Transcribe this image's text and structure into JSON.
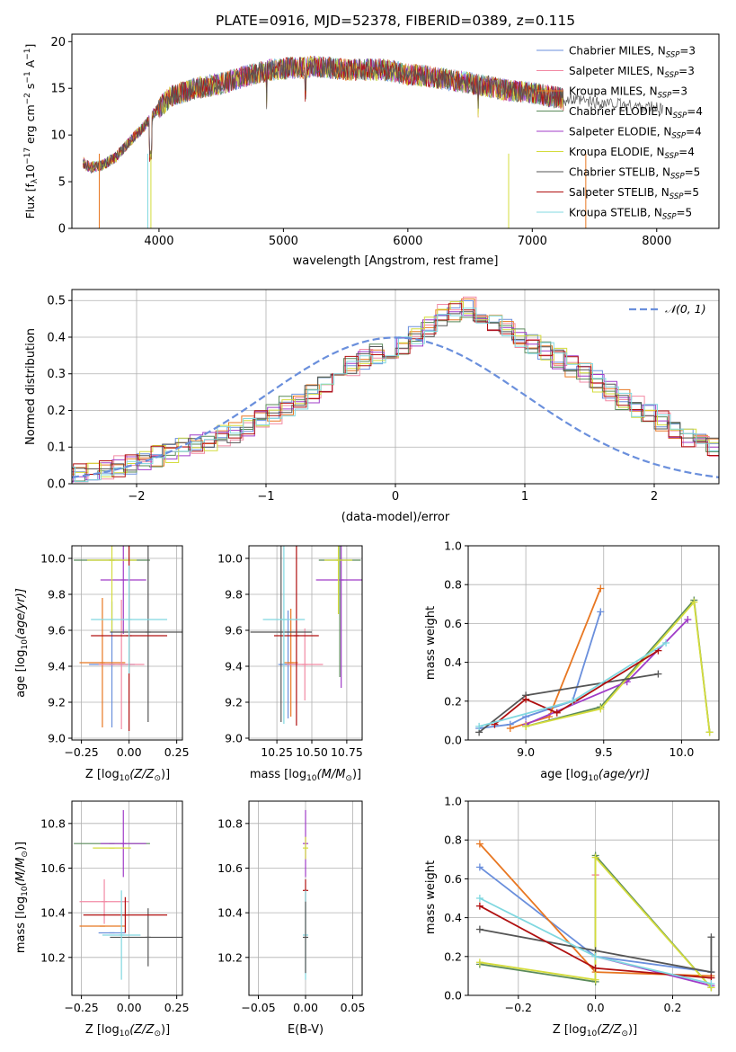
{
  "title": "PLATE=0916, MJD=52378, FIBERID=0389, z=0.115",
  "colors": {
    "c1": "#6a8fdc",
    "c2": "#e87722",
    "c3": "#f28aa4",
    "c4": "#5a8a5a",
    "c5": "#a03cc8",
    "c6": "#d4dc3c",
    "c7": "#555555",
    "c8": "#b01010",
    "c9": "#80d8e0",
    "grid": "#b0b0b0"
  },
  "chart_data": [
    {
      "id": "spectrum",
      "type": "line",
      "xlabel": "wavelength [Angstrom, rest frame]",
      "ylabel": "Flux [f$_\\lambda$10$^{-17}$ erg cm$^{-2}$ s$^{-1}$ A$^{-1}$]",
      "ylabel_parts": {
        "a": "Flux [f",
        "b": "λ",
        "c": "10",
        "d": "−17",
        "e": " erg cm",
        "f": "−2",
        "g": " s",
        "h": "−1",
        "i": " A",
        "j": "−1",
        "k": "]"
      },
      "xlim": [
        3300,
        8500
      ],
      "ylim": [
        0,
        20.8
      ],
      "xticks": [
        4000,
        5000,
        6000,
        7000,
        8000
      ],
      "yticks": [
        0,
        5,
        10,
        15,
        20
      ],
      "grid": false,
      "legend_position": "top-right",
      "spectrum_anchors": [
        [
          3390,
          7
        ],
        [
          3450,
          6.5
        ],
        [
          3550,
          6.8
        ],
        [
          3650,
          7.6
        ],
        [
          3800,
          9.8
        ],
        [
          3900,
          11.2
        ],
        [
          3970,
          12.5
        ],
        [
          4100,
          14.2
        ],
        [
          4300,
          15.0
        ],
        [
          4500,
          15.5
        ],
        [
          4700,
          16.3
        ],
        [
          4900,
          17.0
        ],
        [
          5100,
          17.2
        ],
        [
          5300,
          17.3
        ],
        [
          5500,
          17.0
        ],
        [
          5800,
          17.0
        ],
        [
          6000,
          16.5
        ],
        [
          6200,
          16.2
        ],
        [
          6400,
          15.8
        ],
        [
          6600,
          15.3
        ],
        [
          6800,
          14.8
        ],
        [
          7000,
          14.5
        ],
        [
          7200,
          14.0
        ],
        [
          7250,
          13.8
        ]
      ],
      "series": [
        {
          "name_a": "Chabrier MILES, N",
          "name_sub": "SSP",
          "name_b": "=3",
          "color_key": "c1"
        },
        {
          "name_a": "Salpeter MILES, N",
          "name_sub": "SSP",
          "name_b": "=3",
          "color_key": "c3"
        },
        {
          "name_a": "Kroupa MILES, N",
          "name_sub": "SSP",
          "name_b": "=3",
          "color_key": "c2"
        },
        {
          "name_a": "Chabrier ELODIE, N",
          "name_sub": "SSP",
          "name_b": "=4",
          "color_key": "c4"
        },
        {
          "name_a": "Salpeter ELODIE, N",
          "name_sub": "SSP",
          "name_b": "=4",
          "color_key": "c5"
        },
        {
          "name_a": "Kroupa ELODIE, N",
          "name_sub": "SSP",
          "name_b": "=4",
          "color_key": "c6"
        },
        {
          "name_a": "Chabrier STELIB, N",
          "name_sub": "SSP",
          "name_b": "=5",
          "color_key": "c7"
        },
        {
          "name_a": "Salpeter STELIB, N",
          "name_sub": "SSP",
          "name_b": "=5",
          "color_key": "c8"
        },
        {
          "name_a": "Kroupa STELIB, N",
          "name_sub": "SSP",
          "name_b": "=5",
          "color_key": "c9"
        }
      ]
    },
    {
      "id": "residuals",
      "type": "line",
      "xlabel": "(data-model)/error",
      "ylabel": "Normed distribution",
      "xlim": [
        -2.5,
        2.5
      ],
      "ylim": [
        0,
        0.53
      ],
      "xticks": [
        -2,
        -1,
        0,
        1,
        2
      ],
      "xtick_labels": [
        "−2",
        "−1",
        "0",
        "1",
        "2"
      ],
      "yticks": [
        0.0,
        0.1,
        0.2,
        0.3,
        0.4,
        0.5
      ],
      "ytick_labels": [
        "0.0",
        "0.1",
        "0.2",
        "0.3",
        "0.4",
        "0.5"
      ],
      "grid": true,
      "legend_position": "top-right",
      "legend_label": "𝒩(0, 1)",
      "bin_width": 0.1,
      "histogram_base": [
        0.018,
        0.025,
        0.028,
        0.035,
        0.048,
        0.055,
        0.065,
        0.075,
        0.085,
        0.095,
        0.105,
        0.12,
        0.13,
        0.14,
        0.155,
        0.17,
        0.19,
        0.21,
        0.23,
        0.25,
        0.27,
        0.3,
        0.32,
        0.34,
        0.355,
        0.37,
        0.38,
        0.4,
        0.43,
        0.46,
        0.47,
        0.48,
        0.46,
        0.44,
        0.42,
        0.4,
        0.38,
        0.36,
        0.34,
        0.32,
        0.3,
        0.28,
        0.25,
        0.23,
        0.21,
        0.19,
        0.17,
        0.15,
        0.13,
        0.115,
        0.1,
        0.085,
        0.075,
        0.065,
        0.055,
        0.048,
        0.042,
        0.036,
        0.03,
        0.026,
        0.022,
        0.018,
        0.015,
        0.013,
        0.012
      ],
      "histogram_start": -2.6
    },
    {
      "id": "age-vs-Z",
      "type": "scatter",
      "xlabel_a": "Z [log",
      "xlabel_sub": "10",
      "xlabel_b": "(Z/Z",
      "xlabel_sun": "⊙",
      "xlabel_c": ")]",
      "ylabel_a": "age  [log",
      "ylabel_sub": "10",
      "ylabel_b": "(age/yr)]",
      "xlim": [
        -0.3,
        0.28
      ],
      "ylim": [
        8.99,
        10.07
      ],
      "xticks": [
        -0.25,
        0.0,
        0.25
      ],
      "xtick_labels": [
        "−0.25",
        "0.00",
        "0.25"
      ],
      "yticks": [
        9.0,
        9.2,
        9.4,
        9.6,
        9.8,
        10.0
      ],
      "ytick_labels": [
        "9.0",
        "9.2",
        "9.4",
        "9.6",
        "9.8",
        "10.0"
      ],
      "grid": true,
      "points": [
        {
          "c": "c1",
          "x": -0.09,
          "xerr": 0.12,
          "y": 9.41,
          "yerr": 0.35
        },
        {
          "c": "c2",
          "x": -0.14,
          "xerr": 0.12,
          "y": 9.42,
          "yerr": 0.36
        },
        {
          "c": "c3",
          "x": -0.04,
          "xerr": 0.12,
          "y": 9.41,
          "yerr": 0.36
        },
        {
          "c": "c4",
          "x": -0.09,
          "xerr": 0.2,
          "y": 9.99,
          "yerr": 0.0
        },
        {
          "c": "c5",
          "x": -0.03,
          "xerr": 0.12,
          "y": 9.88,
          "yerr": 0.3
        },
        {
          "c": "c6",
          "x": -0.09,
          "xerr": 0.13,
          "y": 9.99,
          "yerr": 0.4
        },
        {
          "c": "c7",
          "x": 0.1,
          "xerr": 0.2,
          "y": 9.59,
          "yerr": 0.5
        },
        {
          "c": "c8",
          "x": 0.0,
          "xerr": 0.2,
          "y": 9.57,
          "yerr": 0.53
        },
        {
          "c": "c9",
          "x": 0.0,
          "xerr": 0.2,
          "y": 9.66,
          "yerr": 0.3
        }
      ]
    },
    {
      "id": "age-vs-mass",
      "type": "scatter",
      "xlabel_a": "mass [log",
      "xlabel_sub": "10",
      "xlabel_b": "(M/M",
      "xlabel_sun": "⊙",
      "xlabel_c": ")]",
      "xlim": [
        10.05,
        10.86
      ],
      "ylim": [
        8.99,
        10.07
      ],
      "xticks": [
        10.25,
        10.5,
        10.75
      ],
      "xtick_labels": [
        "10.25",
        "10.50",
        "10.75"
      ],
      "yticks": [
        9.0,
        9.2,
        9.4,
        9.6,
        9.8,
        10.0
      ],
      "ytick_labels": [
        "9.0",
        "9.2",
        "9.4",
        "9.6",
        "9.8",
        "10.0"
      ],
      "grid": true,
      "points": [
        {
          "c": "c1",
          "x": 10.33,
          "xerr": 0.07,
          "y": 9.41,
          "yerr": 0.3
        },
        {
          "c": "c2",
          "x": 10.35,
          "xerr": 0.05,
          "y": 9.42,
          "yerr": 0.3
        },
        {
          "c": "c3",
          "x": 10.45,
          "xerr": 0.13,
          "y": 9.41,
          "yerr": 0.2
        },
        {
          "c": "c4",
          "x": 10.7,
          "xerr": 0.15,
          "y": 9.99,
          "yerr": 0.65
        },
        {
          "c": "c5",
          "x": 10.71,
          "xerr": 0.18,
          "y": 9.88,
          "yerr": 0.6
        },
        {
          "c": "c6",
          "x": 10.69,
          "xerr": 0.1,
          "y": 9.99,
          "yerr": 0.3
        },
        {
          "c": "c7",
          "x": 10.28,
          "xerr": 0.22,
          "y": 9.59,
          "yerr": 0.5
        },
        {
          "c": "c8",
          "x": 10.39,
          "xerr": 0.16,
          "y": 9.57,
          "yerr": 0.5
        },
        {
          "c": "c9",
          "x": 10.3,
          "xerr": 0.15,
          "y": 9.66,
          "yerr": 0.58
        }
      ]
    },
    {
      "id": "weight-vs-age",
      "type": "line",
      "xlabel_a": "age  [log",
      "xlabel_sub": "10",
      "xlabel_b": "(age/yr)]",
      "ylabel": "mass weight",
      "xlim": [
        8.63,
        10.24
      ],
      "ylim": [
        0.0,
        1.0
      ],
      "xticks": [
        9.0,
        9.5,
        10.0
      ],
      "xtick_labels": [
        "9.0",
        "9.5",
        "10.0"
      ],
      "yticks": [
        0.0,
        0.2,
        0.4,
        0.6,
        0.8,
        1.0
      ],
      "ytick_labels": [
        "0.0",
        "0.2",
        "0.4",
        "0.6",
        "0.8",
        "1.0"
      ],
      "grid": true,
      "series": [
        {
          "c": "c1",
          "x": [
            8.7,
            8.9,
            9.0,
            9.3,
            9.48
          ],
          "y": [
            0.06,
            0.08,
            0.12,
            0.2,
            0.66
          ]
        },
        {
          "c": "c2",
          "x": [
            8.9,
            9.15,
            9.48
          ],
          "y": [
            0.06,
            0.12,
            0.78
          ]
        },
        {
          "c": "c4",
          "x": [
            9.0,
            9.48,
            10.08,
            10.18
          ],
          "y": [
            0.07,
            0.17,
            0.72,
            0.04
          ]
        },
        {
          "c": "c5",
          "x": [
            9.0,
            9.65,
            10.04
          ],
          "y": [
            0.08,
            0.3,
            0.62
          ]
        },
        {
          "c": "c6",
          "x": [
            9.0,
            9.48,
            10.08,
            10.18
          ],
          "y": [
            0.07,
            0.16,
            0.71,
            0.04
          ]
        },
        {
          "c": "c7",
          "x": [
            8.7,
            9.0,
            9.85
          ],
          "y": [
            0.04,
            0.23,
            0.34
          ]
        },
        {
          "c": "c8",
          "x": [
            8.8,
            9.0,
            9.2,
            9.85
          ],
          "y": [
            0.08,
            0.21,
            0.14,
            0.46
          ]
        },
        {
          "c": "c9",
          "x": [
            8.7,
            9.3,
            9.9
          ],
          "y": [
            0.07,
            0.2,
            0.5
          ]
        }
      ]
    },
    {
      "id": "mass-vs-Z",
      "type": "scatter",
      "xlabel_a": "Z [log",
      "xlabel_sub": "10",
      "xlabel_b": "(Z/Z",
      "xlabel_sun": "⊙",
      "xlabel_c": ")]",
      "ylabel_a": "mass [log",
      "ylabel_sub": "10",
      "ylabel_b": "(M/M",
      "ylabel_sun": "⊙",
      "ylabel_c": ")]",
      "xlim": [
        -0.3,
        0.28
      ],
      "ylim": [
        10.03,
        10.9
      ],
      "xticks": [
        -0.25,
        0.0,
        0.25
      ],
      "xtick_labels": [
        "−0.25",
        "0.00",
        "0.25"
      ],
      "yticks": [
        10.2,
        10.4,
        10.6,
        10.8
      ],
      "ytick_labels": [
        "10.2",
        "10.4",
        "10.6",
        "10.8"
      ],
      "grid": true,
      "points": [
        {
          "c": "c1",
          "x": -0.09,
          "xerr": 0.07,
          "y": 10.31,
          "yerr": 0.0
        },
        {
          "c": "c2",
          "x": -0.14,
          "xerr": 0.12,
          "y": 10.34,
          "yerr": 0.0
        },
        {
          "c": "c3",
          "x": -0.13,
          "xerr": 0.13,
          "y": 10.45,
          "yerr": 0.1
        },
        {
          "c": "c4",
          "x": -0.09,
          "xerr": 0.2,
          "y": 10.71,
          "yerr": 0.0
        },
        {
          "c": "c5",
          "x": -0.03,
          "xerr": 0.12,
          "y": 10.71,
          "yerr": 0.15
        },
        {
          "c": "c6",
          "x": -0.09,
          "xerr": 0.1,
          "y": 10.69,
          "yerr": 0.0
        },
        {
          "c": "c7",
          "x": 0.1,
          "xerr": 0.2,
          "y": 10.29,
          "yerr": 0.13
        },
        {
          "c": "c8",
          "x": -0.02,
          "xerr": 0.22,
          "y": 10.39,
          "yerr": 0.08
        },
        {
          "c": "c9",
          "x": -0.04,
          "xerr": 0.1,
          "y": 10.3,
          "yerr": 0.2
        }
      ]
    },
    {
      "id": "mass-vs-EBV",
      "type": "scatter",
      "xlabel": "E(B-V)",
      "xlim": [
        -0.06,
        0.06
      ],
      "ylim": [
        10.03,
        10.9
      ],
      "xticks": [
        -0.05,
        0.0,
        0.05
      ],
      "xtick_labels": [
        "−0.05",
        "0.00",
        "0.05"
      ],
      "yticks": [
        10.2,
        10.4,
        10.6,
        10.8
      ],
      "ytick_labels": [
        "10.2",
        "10.4",
        "10.6",
        "10.8"
      ],
      "grid": true,
      "points": [
        {
          "c": "c5",
          "x": 0.0,
          "xerr": 0.0,
          "y": 10.71,
          "yerr": 0.15
        },
        {
          "c": "c6",
          "x": 0.0,
          "xerr": 0.0,
          "y": 10.69,
          "yerr": 0.05
        },
        {
          "c": "c8",
          "x": 0.0,
          "xerr": 0.0,
          "y": 10.5,
          "yerr": 0.05
        },
        {
          "c": "c9",
          "x": 0.0,
          "xerr": 0.0,
          "y": 10.3,
          "yerr": 0.2
        },
        {
          "c": "c7",
          "x": 0.0,
          "xerr": 0.0,
          "y": 10.29,
          "yerr": 0.16
        }
      ]
    },
    {
      "id": "weight-vs-Z",
      "type": "line",
      "xlabel_a": "Z [log",
      "xlabel_sub": "10",
      "xlabel_b": "(Z/Z",
      "xlabel_sun": "⊙",
      "xlabel_c": ")]",
      "ylabel": "mass weight",
      "xlim": [
        -0.33,
        0.32
      ],
      "ylim": [
        0.0,
        1.0
      ],
      "xticks": [
        -0.2,
        0.0,
        0.2
      ],
      "xtick_labels": [
        "−0.2",
        "0.0",
        "0.2"
      ],
      "yticks": [
        0.0,
        0.2,
        0.4,
        0.6,
        0.8,
        1.0
      ],
      "ytick_labels": [
        "0.0",
        "0.2",
        "0.4",
        "0.6",
        "0.8",
        "1.0"
      ],
      "grid": true,
      "series": [
        {
          "c": "c1",
          "x": [
            -0.3,
            0.0,
            0.3
          ],
          "y": [
            0.66,
            0.2,
            0.12
          ]
        },
        {
          "c": "c2",
          "x": [
            -0.3,
            0.0,
            0.3
          ],
          "y": [
            0.78,
            0.12,
            0.1
          ]
        },
        {
          "c": "c3",
          "x": [
            0.0,
            0.0
          ],
          "y": [
            0.62,
            0.62
          ]
        },
        {
          "c": "c4",
          "x": [
            -0.3,
            0.0,
            0.0,
            0.3
          ],
          "y": [
            0.16,
            0.07,
            0.72,
            0.04
          ]
        },
        {
          "c": "c5",
          "x": [
            0.0,
            0.3
          ],
          "y": [
            0.2,
            0.05
          ]
        },
        {
          "c": "c6",
          "x": [
            -0.3,
            0.0,
            0.0,
            0.3
          ],
          "y": [
            0.17,
            0.08,
            0.71,
            0.04
          ]
        },
        {
          "c": "c7",
          "x": [
            -0.3,
            0.0,
            0.3,
            0.3
          ],
          "y": [
            0.34,
            0.23,
            0.12,
            0.3
          ]
        },
        {
          "c": "c8",
          "x": [
            -0.3,
            0.0,
            0.3
          ],
          "y": [
            0.46,
            0.14,
            0.09
          ]
        },
        {
          "c": "c9",
          "x": [
            -0.3,
            0.0,
            0.3
          ],
          "y": [
            0.5,
            0.2,
            0.06
          ]
        }
      ]
    }
  ]
}
